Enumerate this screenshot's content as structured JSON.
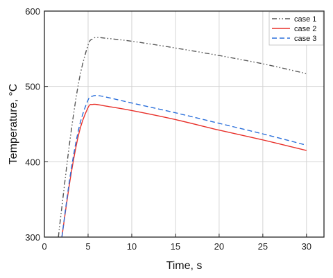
{
  "chart_data": {
    "type": "line",
    "xlabel": "Time, s",
    "ylabel": "Temperature, °C",
    "xlim": [
      0,
      32
    ],
    "ylim": [
      300,
      600
    ],
    "xticks": [
      0,
      5,
      10,
      15,
      20,
      25,
      30
    ],
    "yticks": [
      300,
      400,
      500,
      600
    ],
    "grid": true,
    "legend_position": "top-right",
    "series": [
      {
        "name": "case 1",
        "color": "#555555",
        "dash": "dash-dot-dot",
        "x": [
          1.6,
          2.0,
          3.0,
          4.0,
          5.0,
          5.5,
          6.0,
          7.0,
          10,
          15,
          20,
          25,
          30
        ],
        "y": [
          300,
          340,
          435,
          510,
          555,
          563,
          565,
          564,
          560,
          551,
          541,
          530,
          517
        ]
      },
      {
        "name": "case 2",
        "color": "#e8302a",
        "dash": "solid",
        "x": [
          2.0,
          3.0,
          4.0,
          5.0,
          5.5,
          6.0,
          7.0,
          10,
          15,
          20,
          25,
          30
        ],
        "y": [
          300,
          380,
          440,
          472,
          476,
          476,
          474,
          468,
          456,
          442,
          429,
          415
        ]
      },
      {
        "name": "case 3",
        "color": "#2a6fdb",
        "dash": "dashed",
        "x": [
          2.0,
          3.0,
          4.0,
          5.0,
          5.5,
          6.0,
          7.0,
          10,
          15,
          20,
          25,
          30
        ],
        "y": [
          300,
          385,
          447,
          482,
          487,
          488,
          486,
          478,
          465,
          451,
          437,
          422
        ]
      }
    ]
  }
}
